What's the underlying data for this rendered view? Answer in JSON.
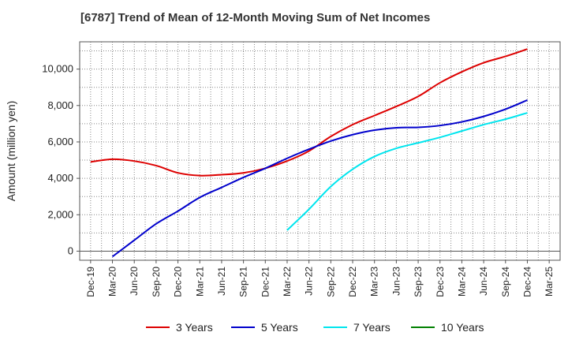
{
  "chart_data": {
    "type": "line",
    "title": "[6787]  Trend of Mean of 12-Month Moving Sum of Net Incomes",
    "ylabel": "Amount (million yen)",
    "xlabel": "",
    "ylim": [
      -500,
      11500
    ],
    "yticks": [
      0,
      2000,
      4000,
      6000,
      8000,
      10000
    ],
    "ytick_labels": [
      "0",
      "2,000",
      "4,000",
      "6,000",
      "8,000",
      "10,000"
    ],
    "categories": [
      "Dec-19",
      "Mar-20",
      "Jun-20",
      "Sep-20",
      "Dec-20",
      "Mar-21",
      "Jun-21",
      "Sep-21",
      "Dec-21",
      "Mar-22",
      "Jun-22",
      "Sep-22",
      "Dec-22",
      "Mar-23",
      "Jun-23",
      "Sep-23",
      "Dec-23",
      "Mar-24",
      "Jun-24",
      "Sep-24",
      "Dec-24",
      "Mar-25"
    ],
    "grid": true,
    "legend_position": "bottom",
    "series": [
      {
        "name": "3 Years",
        "color": "#dd0000",
        "x": [
          "Dec-19",
          "Mar-20",
          "Jun-20",
          "Sep-20",
          "Dec-20",
          "Mar-21",
          "Jun-21",
          "Sep-21",
          "Dec-21",
          "Mar-22",
          "Jun-22",
          "Sep-22",
          "Dec-22",
          "Mar-23",
          "Jun-23",
          "Sep-23",
          "Dec-23",
          "Mar-24",
          "Jun-24",
          "Sep-24",
          "Dec-24"
        ],
        "values": [
          4900,
          5050,
          4950,
          4700,
          4300,
          4150,
          4200,
          4300,
          4550,
          4950,
          5500,
          6300,
          6950,
          7450,
          7950,
          8500,
          9250,
          9850,
          10350,
          10700,
          11100
        ]
      },
      {
        "name": "5 Years",
        "color": "#0000cc",
        "x": [
          "Mar-20",
          "Jun-20",
          "Sep-20",
          "Dec-20",
          "Mar-21",
          "Jun-21",
          "Sep-21",
          "Dec-21",
          "Mar-22",
          "Jun-22",
          "Sep-22",
          "Dec-22",
          "Mar-23",
          "Jun-23",
          "Sep-23",
          "Dec-23",
          "Mar-24",
          "Jun-24",
          "Sep-24",
          "Dec-24"
        ],
        "values": [
          -300,
          600,
          1500,
          2200,
          2950,
          3500,
          4050,
          4550,
          5100,
          5600,
          6050,
          6400,
          6650,
          6780,
          6800,
          6900,
          7100,
          7400,
          7800,
          8300
        ]
      },
      {
        "name": "7 Years",
        "color": "#00e5ee",
        "x": [
          "Mar-22",
          "Jun-22",
          "Sep-22",
          "Dec-22",
          "Mar-23",
          "Jun-23",
          "Sep-23",
          "Dec-23",
          "Mar-24",
          "Jun-24",
          "Sep-24",
          "Dec-24"
        ],
        "values": [
          1150,
          2300,
          3550,
          4500,
          5200,
          5650,
          5950,
          6250,
          6600,
          6950,
          7250,
          7600
        ]
      },
      {
        "name": "10 Years",
        "color": "#008000",
        "x": [],
        "values": []
      }
    ]
  }
}
